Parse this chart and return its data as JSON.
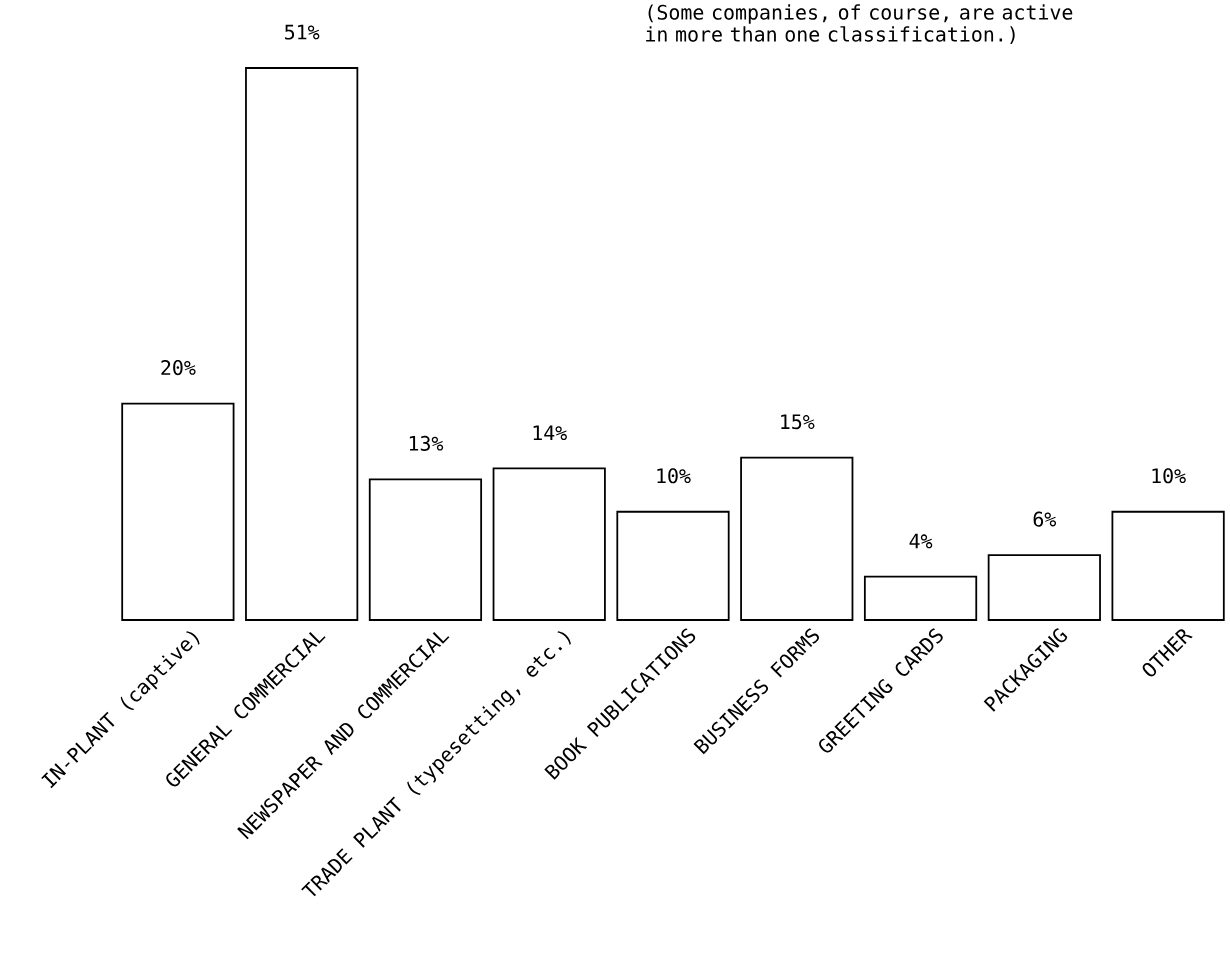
{
  "chart_data": {
    "type": "bar",
    "categories": [
      "IN-PLANT (captive)",
      "GENERAL COMMERCIAL",
      "NEWSPAPER AND COMMERCIAL",
      "TRADE PLANT (typesetting, etc.)",
      "BOOK PUBLICATIONS",
      "BUSINESS FORMS",
      "GREETING CARDS",
      "PACKAGING",
      "OTHER"
    ],
    "values": [
      20,
      51,
      13,
      14,
      10,
      15,
      4,
      6,
      10
    ],
    "value_labels": [
      "20%",
      "51%",
      "13%",
      "14%",
      "10%",
      "15%",
      "4%",
      "6%",
      "10%"
    ],
    "color": "#ffffff",
    "annotations": [
      "(Some companies, of course, are active in more than one classification.)"
    ]
  }
}
